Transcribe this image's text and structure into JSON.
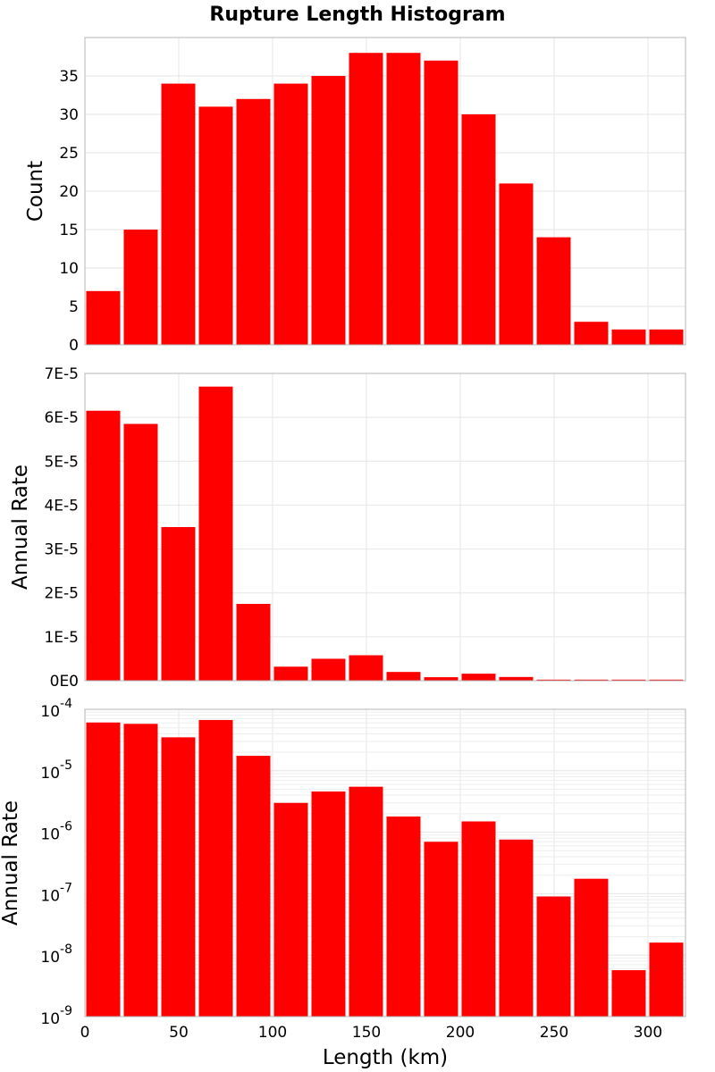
{
  "figure_title": "Rupture Length Histogram",
  "colors": {
    "bar": "#ff0000",
    "background": "#ffffff",
    "grid": "#e6e6e6",
    "frame": "#b4b4b4"
  },
  "chart_data": [
    {
      "type": "bar",
      "id": "count",
      "ylabel": "Count",
      "yscale": "linear",
      "xlim": [
        0,
        320
      ],
      "ylim": [
        0,
        40
      ],
      "yticks": [
        0,
        5,
        10,
        15,
        20,
        25,
        30,
        35
      ],
      "ytick_labels": [
        "0",
        "5",
        "10",
        "15",
        "20",
        "25",
        "30",
        "35"
      ],
      "bin_edges": [
        0,
        20,
        40,
        60,
        80,
        100,
        120,
        140,
        160,
        180,
        200,
        220,
        240,
        260,
        280,
        300,
        320
      ],
      "values": [
        7,
        15,
        34,
        31,
        32,
        34,
        35,
        38,
        38,
        37,
        30,
        21,
        14,
        3,
        2,
        2
      ]
    },
    {
      "type": "bar",
      "id": "rate-linear",
      "ylabel": "Annual Rate",
      "yscale": "linear",
      "xlim": [
        0,
        320
      ],
      "ylim": [
        0,
        7e-05
      ],
      "yticks": [
        0,
        1e-05,
        2e-05,
        3e-05,
        4e-05,
        5e-05,
        6e-05,
        7e-05
      ],
      "ytick_labels": [
        "0E0",
        "1E-5",
        "2E-5",
        "3E-5",
        "4E-5",
        "5E-5",
        "6E-5",
        "7E-5"
      ],
      "bin_edges": [
        0,
        20,
        40,
        60,
        80,
        100,
        120,
        140,
        160,
        180,
        200,
        220,
        240,
        260,
        280,
        300,
        320
      ],
      "values": [
        6.15e-05,
        5.85e-05,
        3.5e-05,
        6.7e-05,
        1.75e-05,
        3.2e-06,
        5e-06,
        5.8e-06,
        2e-06,
        8e-07,
        1.6e-06,
        8.5e-07,
        1e-07,
        1.9e-07,
        6e-09,
        1.7e-08
      ]
    },
    {
      "type": "bar",
      "id": "rate-log",
      "ylabel": "Annual Rate",
      "xlabel": "Length (km)",
      "yscale": "log",
      "xlim": [
        0,
        320
      ],
      "ylim": [
        1e-09,
        0.0001
      ],
      "yticks": [
        1e-09,
        1e-08,
        1e-07,
        1e-06,
        1e-05,
        0.0001
      ],
      "ytick_base": "10",
      "ytick_exponents": [
        "-9",
        "-8",
        "-7",
        "-6",
        "-5",
        "-4"
      ],
      "xticks": [
        0,
        50,
        100,
        150,
        200,
        250,
        300
      ],
      "xtick_labels": [
        "0",
        "50",
        "100",
        "150",
        "200",
        "250",
        "300"
      ],
      "bin_edges": [
        0,
        20,
        40,
        60,
        80,
        100,
        120,
        140,
        160,
        180,
        200,
        220,
        240,
        260,
        280,
        300,
        320
      ],
      "values": [
        6.1e-05,
        5.8e-05,
        3.5e-05,
        6.7e-05,
        1.75e-05,
        3e-06,
        4.6e-06,
        5.5e-06,
        1.8e-06,
        7e-07,
        1.5e-06,
        7.6e-07,
        9e-08,
        1.75e-07,
        5.7e-09,
        1.6e-08
      ]
    }
  ]
}
